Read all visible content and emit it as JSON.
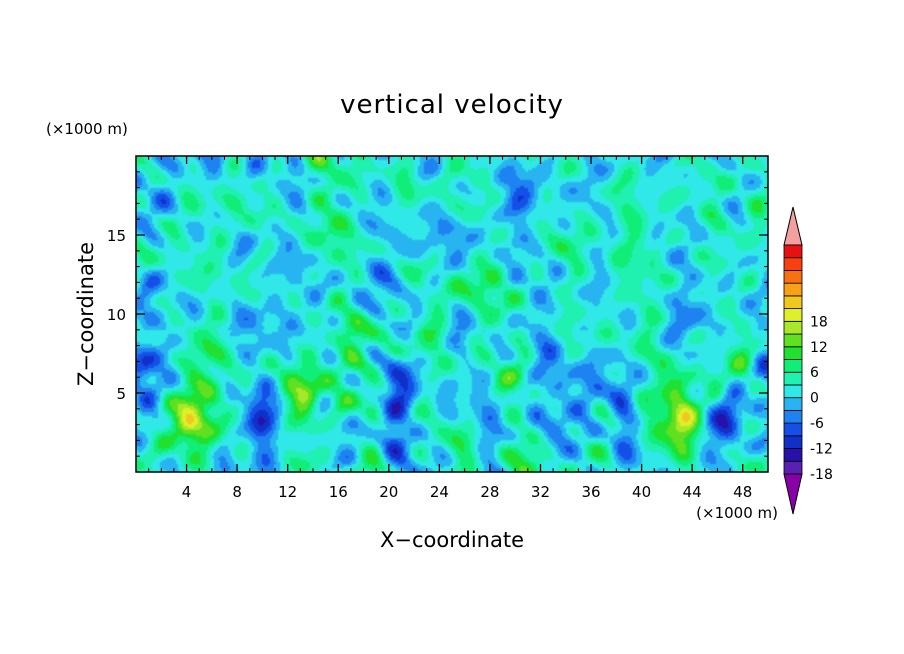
{
  "chart_data": {
    "type": "heatmap",
    "title": "vertical velocity",
    "xlabel": "X−coordinate",
    "ylabel": "Z−coordinate",
    "x_unit": "(×1000 m)",
    "y_unit": "(×1000 m)",
    "xlim": [
      0,
      50
    ],
    "ylim": [
      0,
      20
    ],
    "x_ticks": [
      4,
      8,
      12,
      16,
      20,
      24,
      28,
      32,
      36,
      40,
      44,
      48
    ],
    "y_ticks": [
      5,
      10,
      15
    ],
    "colorbar": {
      "min": -21,
      "max": 21,
      "step": 3,
      "labels": [
        18,
        12,
        6,
        0,
        -6,
        -12,
        -18
      ],
      "colors": [
        "#8a00a8",
        "#5a20b0",
        "#2810a8",
        "#1030c8",
        "#1450e8",
        "#1e82f0",
        "#28b4f0",
        "#30e8e8",
        "#20f0b0",
        "#10ee78",
        "#20e030",
        "#60e020",
        "#a8e828",
        "#e0f028",
        "#f0c820",
        "#f8a018",
        "#f87010",
        "#f84010",
        "#e81010",
        "#f4a0a0"
      ]
    },
    "features": [
      {
        "x": 4.2,
        "z": 3.8,
        "value": 14
      },
      {
        "x": 9.8,
        "z": 3.4,
        "value": -13
      },
      {
        "x": 13.6,
        "z": 4.0,
        "value": 9
      },
      {
        "x": 20.2,
        "z": 3.2,
        "value": -11
      },
      {
        "x": 26.2,
        "z": 1.2,
        "value": 5
      },
      {
        "x": 28.2,
        "z": 1.2,
        "value": -6
      },
      {
        "x": 36.0,
        "z": 4.2,
        "value": -9
      },
      {
        "x": 38.6,
        "z": 3.2,
        "value": -11
      },
      {
        "x": 43.3,
        "z": 3.4,
        "value": 15
      },
      {
        "x": 47.0,
        "z": 3.6,
        "value": -12
      },
      {
        "x": 26.5,
        "z": 11.5,
        "value": 4
      },
      {
        "x": 6.0,
        "z": 7.2,
        "value": 5
      },
      {
        "x": 21.0,
        "z": 6.8,
        "value": -5
      },
      {
        "x": 1.0,
        "z": 6.5,
        "value": -5
      },
      {
        "x": 49.5,
        "z": 6.5,
        "value": -6
      }
    ]
  }
}
